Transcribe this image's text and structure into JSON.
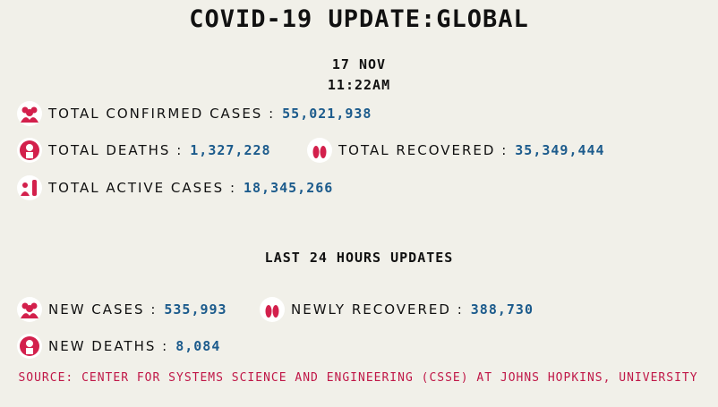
{
  "header": {
    "title": "COVID-19 UPDATE:GLOBAL",
    "date": "17 NOV",
    "time": "11:22AM"
  },
  "totals": [
    {
      "label": "TOTAL CONFIRMED CASES :",
      "value": "55,021,938"
    },
    {
      "label": "TOTAL DEATHS :",
      "value": "1,327,228"
    },
    {
      "label": "TOTAL RECOVERED :",
      "value": "35,349,444"
    },
    {
      "label": "TOTAL ACTIVE CASES :",
      "value": "18,345,266"
    }
  ],
  "last_24h": {
    "title": "LAST 24 HOURS UPDATES",
    "items": [
      {
        "label": "NEW CASES :",
        "value": "535,993"
      },
      {
        "label": "NEWLY RECOVERED :",
        "value": "388,730"
      },
      {
        "label": "NEW DEATHS :",
        "value": "8,084"
      }
    ]
  },
  "source": "SOURCE: CENTER FOR SYSTEMS SCIENCE AND ENGINEERING (CSSE) AT JOHNS HOPKINS, UNIVERSITY"
}
